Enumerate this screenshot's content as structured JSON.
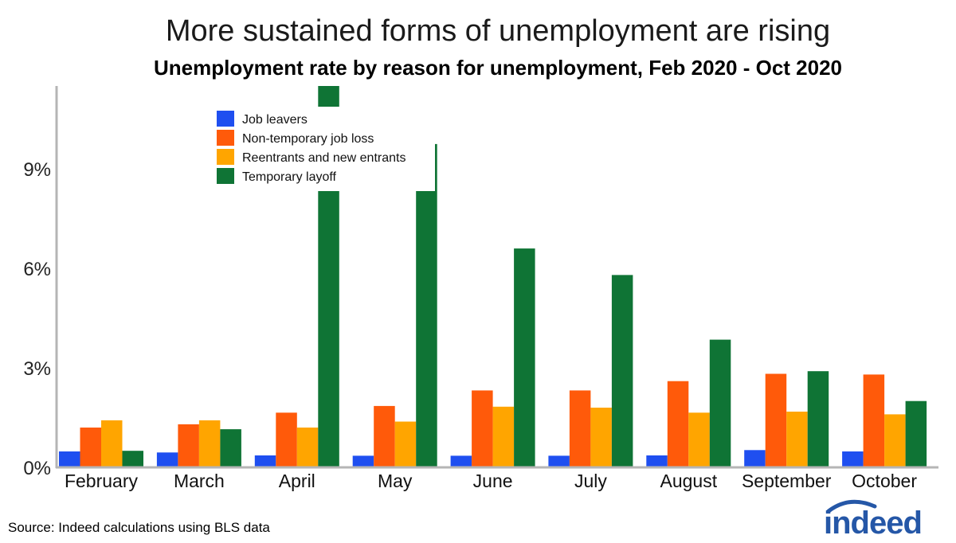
{
  "chart_data": {
    "type": "bar",
    "title": "More sustained forms of unemployment are rising",
    "subtitle": "Unemployment rate by reason for unemployment, Feb 2020 - Oct 2020",
    "categories": [
      "February",
      "March",
      "April",
      "May",
      "June",
      "July",
      "August",
      "September",
      "October"
    ],
    "series": [
      {
        "name": "Job leavers",
        "color": "#1f4ff0",
        "values": [
          0.48,
          0.45,
          0.36,
          0.35,
          0.35,
          0.35,
          0.36,
          0.52,
          0.48
        ]
      },
      {
        "name": "Non-temporary job loss",
        "color": "#ff5a0a",
        "values": [
          1.2,
          1.3,
          1.65,
          1.85,
          2.32,
          2.32,
          2.6,
          2.82,
          2.8
        ]
      },
      {
        "name": "Reentrants and new entrants",
        "color": "#ffa500",
        "values": [
          1.42,
          1.42,
          1.2,
          1.38,
          1.83,
          1.8,
          1.65,
          1.68,
          1.6
        ]
      },
      {
        "name": "Temporary layoff",
        "color": "#0f7435",
        "values": [
          0.5,
          1.15,
          11.5,
          9.75,
          6.6,
          5.8,
          3.85,
          2.9,
          2.0
        ],
        "clipped_at": [
          2,
          3
        ]
      }
    ],
    "ylim": [
      0,
      11.5
    ],
    "yticks": [
      {
        "value": 0,
        "label": "0%"
      },
      {
        "value": 3,
        "label": "3%"
      },
      {
        "value": 6,
        "label": "6%"
      },
      {
        "value": 9,
        "label": "9%"
      }
    ],
    "xlabel": "",
    "ylabel": "",
    "grid": false,
    "legend_position": "top-left"
  },
  "footer": {
    "source": "Source: Indeed calculations using BLS data",
    "logo_text": "indeed",
    "logo_color": "#2557a7"
  }
}
